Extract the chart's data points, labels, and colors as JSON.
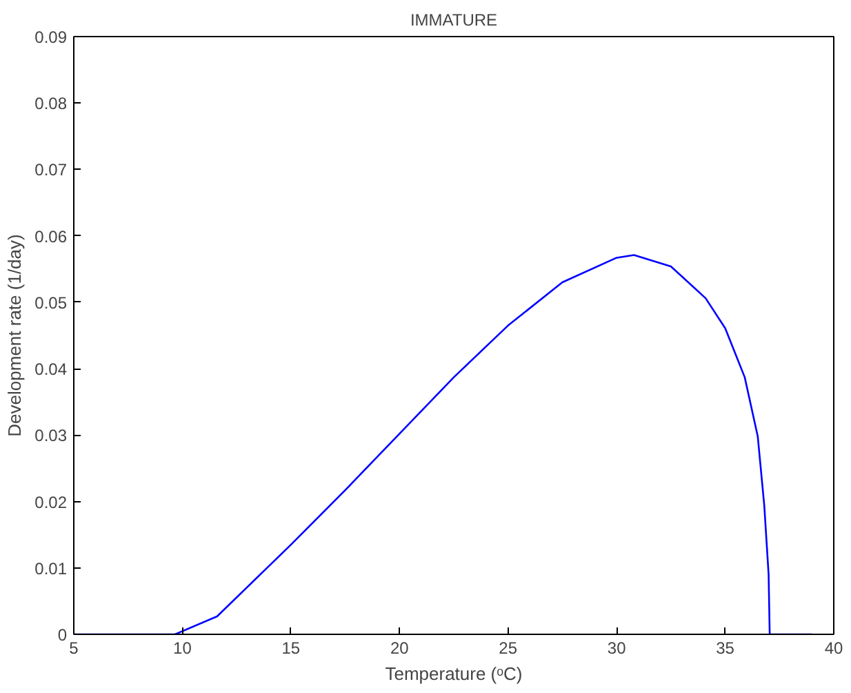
{
  "chart_data": {
    "type": "line",
    "title": "IMMATURE",
    "xlabel": "Temperature (ᵒC)",
    "ylabel": "Development rate (1/day)",
    "x": [
      5,
      9.66,
      11.6,
      15,
      17.5,
      20,
      22.5,
      25,
      27.5,
      30,
      30.8,
      32.5,
      34.1,
      35,
      35.9,
      36.5,
      36.8,
      37,
      37.05,
      39
    ],
    "series": [
      {
        "color": "#0000ff",
        "values": [
          0,
          0,
          0.0027,
          0.0135,
          0.0217,
          0.0302,
          0.0387,
          0.0465,
          0.053,
          0.0567,
          0.0571,
          0.0554,
          0.0506,
          0.0461,
          0.0387,
          0.0298,
          0.0194,
          0.009,
          0,
          0
        ]
      }
    ],
    "xlim": [
      5,
      40
    ],
    "xticks": [
      5,
      10,
      15,
      20,
      25,
      30,
      35,
      40
    ],
    "ylim": [
      0,
      0.09
    ],
    "yticks": [
      0,
      0.01,
      0.02,
      0.03,
      0.04,
      0.05,
      0.06,
      0.07,
      0.08,
      0.09
    ],
    "grid": false,
    "marker": "none",
    "line_style": "solid"
  }
}
